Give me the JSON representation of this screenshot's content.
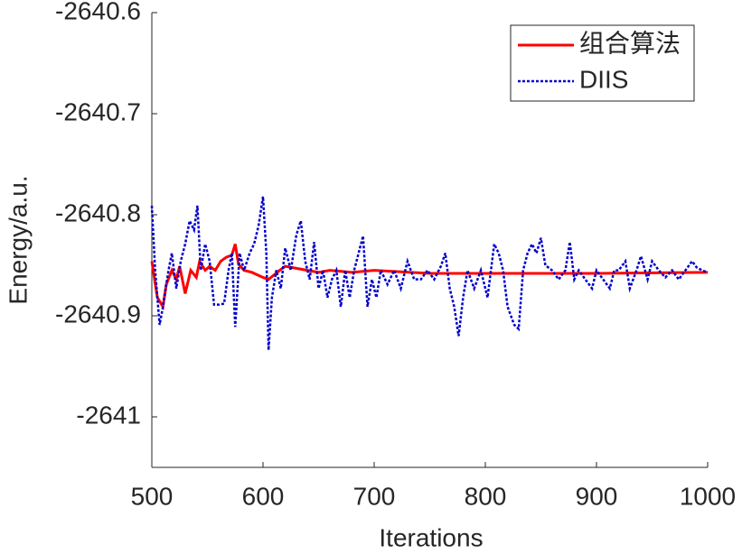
{
  "chart_data": {
    "type": "line",
    "xlabel": "Iterations",
    "ylabel": "Energy/a.u.",
    "xlim": [
      500,
      1000
    ],
    "xticks": [
      500,
      600,
      700,
      800,
      900,
      1000
    ],
    "ylim": [
      -2641.05,
      -2640.6
    ],
    "yticks": [
      -2641,
      -2640.9,
      -2640.8,
      -2640.7,
      -2640.6
    ],
    "legend": "upper right",
    "grid": false,
    "series": [
      {
        "name": "组合算法",
        "color": "#ff0000",
        "style": "solid",
        "x": [
          500,
          505,
          510,
          513,
          518,
          522,
          525,
          530,
          535,
          540,
          543,
          548,
          552,
          557,
          562,
          567,
          572,
          575,
          578,
          583,
          590,
          600,
          605,
          615,
          620,
          630,
          640,
          650,
          660,
          680,
          700,
          750,
          800,
          900,
          1000
        ],
        "values": [
          -2640.846,
          -2640.882,
          -2640.891,
          -2640.869,
          -2640.855,
          -2640.864,
          -2640.851,
          -2640.878,
          -2640.855,
          -2640.862,
          -2640.846,
          -2640.855,
          -2640.851,
          -2640.855,
          -2640.846,
          -2640.842,
          -2640.84,
          -2640.829,
          -2640.849,
          -2640.855,
          -2640.857,
          -2640.862,
          -2640.864,
          -2640.855,
          -2640.851,
          -2640.853,
          -2640.855,
          -2640.857,
          -2640.855,
          -2640.857,
          -2640.855,
          -2640.858,
          -2640.858,
          -2640.858,
          -2640.857
        ]
      },
      {
        "name": "DIIS",
        "color": "#0000cc",
        "style": "dotted",
        "x": [
          500,
          503,
          507,
          510,
          515,
          518,
          522,
          526,
          530,
          534,
          538,
          541,
          544,
          548,
          552,
          556,
          560,
          565,
          569,
          572,
          575,
          579,
          583,
          588,
          592,
          596,
          600,
          603,
          605,
          608,
          612,
          616,
          620,
          625,
          630,
          634,
          638,
          642,
          646,
          650,
          654,
          658,
          662,
          666,
          670,
          674,
          678,
          682,
          686,
          690,
          694,
          698,
          702,
          706,
          712,
          718,
          724,
          730,
          736,
          742,
          748,
          754,
          760,
          764,
          768,
          772,
          776,
          780,
          784,
          790,
          796,
          802,
          808,
          812,
          816,
          820,
          826,
          830,
          834,
          838,
          842,
          846,
          850,
          854,
          860,
          866,
          872,
          876,
          880,
          884,
          890,
          896,
          900,
          906,
          912,
          916,
          920,
          926,
          930,
          936,
          940,
          946,
          950,
          956,
          962,
          968,
          974,
          980,
          986,
          990,
          995,
          1000
        ],
        "values": [
          -2640.791,
          -2640.855,
          -2640.909,
          -2640.891,
          -2640.855,
          -2640.838,
          -2640.873,
          -2640.846,
          -2640.829,
          -2640.806,
          -2640.815,
          -2640.791,
          -2640.855,
          -2640.829,
          -2640.846,
          -2640.889,
          -2640.889,
          -2640.888,
          -2640.855,
          -2640.838,
          -2640.911,
          -2640.838,
          -2640.855,
          -2640.838,
          -2640.829,
          -2640.811,
          -2640.782,
          -2640.838,
          -2640.934,
          -2640.882,
          -2640.855,
          -2640.873,
          -2640.833,
          -2640.855,
          -2640.82,
          -2640.806,
          -2640.846,
          -2640.864,
          -2640.827,
          -2640.873,
          -2640.855,
          -2640.882,
          -2640.864,
          -2640.855,
          -2640.891,
          -2640.855,
          -2640.882,
          -2640.855,
          -2640.838,
          -2640.821,
          -2640.891,
          -2640.864,
          -2640.882,
          -2640.855,
          -2640.869,
          -2640.855,
          -2640.873,
          -2640.846,
          -2640.864,
          -2640.864,
          -2640.855,
          -2640.864,
          -2640.851,
          -2640.838,
          -2640.873,
          -2640.891,
          -2640.92,
          -2640.882,
          -2640.855,
          -2640.873,
          -2640.855,
          -2640.882,
          -2640.829,
          -2640.838,
          -2640.855,
          -2640.891,
          -2640.909,
          -2640.913,
          -2640.855,
          -2640.838,
          -2640.829,
          -2640.838,
          -2640.823,
          -2640.85,
          -2640.855,
          -2640.864,
          -2640.855,
          -2640.827,
          -2640.864,
          -2640.855,
          -2640.864,
          -2640.873,
          -2640.855,
          -2640.864,
          -2640.873,
          -2640.855,
          -2640.855,
          -2640.846,
          -2640.873,
          -2640.855,
          -2640.841,
          -2640.864,
          -2640.846,
          -2640.855,
          -2640.862,
          -2640.855,
          -2640.864,
          -2640.855,
          -2640.846,
          -2640.852,
          -2640.855,
          -2640.857
        ]
      }
    ]
  }
}
